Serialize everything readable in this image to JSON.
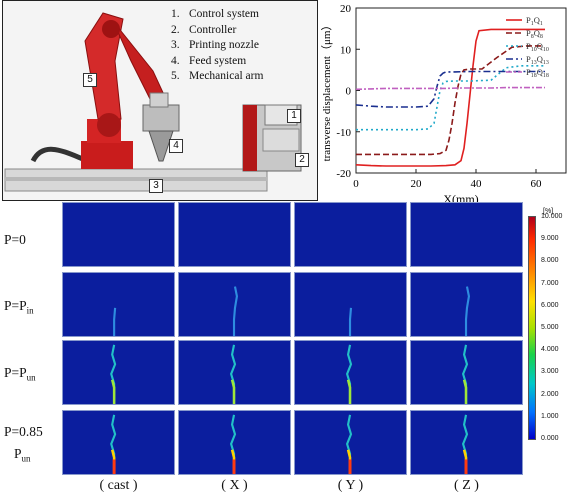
{
  "photo_panel": {
    "legend": [
      {
        "num": "1.",
        "label": "Control system"
      },
      {
        "num": "2.",
        "label": "Controller"
      },
      {
        "num": "3.",
        "label": "Printing nozzle"
      },
      {
        "num": "4.",
        "label": "Feed system"
      },
      {
        "num": "5.",
        "label": "Mechanical arm"
      }
    ],
    "callouts": [
      "1",
      "2",
      "3",
      "4",
      "5"
    ]
  },
  "chart_data": {
    "type": "line",
    "xlabel": "X(mm)",
    "ylabel": "transverse displacement（μm）",
    "xlim": [
      0,
      70
    ],
    "ylim": [
      -20,
      20
    ],
    "xticks": [
      "0",
      "20",
      "40",
      "60"
    ],
    "yticks": [
      "20",
      "10",
      "0",
      "-10",
      "-20"
    ],
    "legend_position": "top-right",
    "series": [
      {
        "name": "P1Q1",
        "label_main": "P",
        "sub1": "1",
        "label_mid": "Q",
        "sub2": "1",
        "color": "#e02020",
        "dash": "",
        "x": [
          0,
          5,
          10,
          15,
          20,
          25,
          30,
          33,
          35,
          36,
          37,
          38,
          39,
          40,
          41,
          45,
          50,
          55,
          60,
          63
        ],
        "y": [
          -18,
          -18.2,
          -18.3,
          -18.3,
          -18.3,
          -18.3,
          -18.2,
          -18,
          -17,
          -14,
          -8,
          -1,
          6,
          12,
          14.5,
          14.8,
          14.8,
          14.8,
          14.8,
          14.8
        ]
      },
      {
        "name": "P8Q8",
        "label_main": "P",
        "sub1": "8",
        "label_mid": "Q",
        "sub2": "8",
        "color": "#8b1a1a",
        "dash": "6,3",
        "x": [
          0,
          5,
          10,
          15,
          20,
          25,
          28,
          30,
          31,
          32,
          33,
          34,
          35,
          36,
          38,
          42,
          47,
          52,
          57,
          62
        ],
        "y": [
          -15.5,
          -15.5,
          -15.5,
          -15.5,
          -15.5,
          -15.5,
          -15.3,
          -14.5,
          -12,
          -8,
          -3,
          1,
          4,
          5,
          5.2,
          5.2,
          8,
          10.5,
          10.8,
          10.8
        ]
      },
      {
        "name": "P10Q10",
        "label_main": "P",
        "sub1": "10",
        "label_mid": "Q",
        "sub2": "10",
        "color": "#1fa9c9",
        "dash": "2,3",
        "x": [
          0,
          5,
          10,
          15,
          20,
          24,
          26,
          27,
          28,
          29,
          30,
          33,
          38,
          45,
          50,
          55,
          60,
          63
        ],
        "y": [
          -9.5,
          -9.5,
          -9.5,
          -9.5,
          -9.5,
          -9.3,
          -8,
          -4,
          0,
          1.8,
          2.2,
          2.3,
          2.3,
          2.5,
          5.5,
          6,
          6,
          6
        ]
      },
      {
        "name": "P13Q13",
        "label_main": "P",
        "sub1": "13",
        "label_mid": "Q",
        "sub2": "13",
        "color": "#1a2f8f",
        "dash": "7,3,2,3",
        "x": [
          0,
          5,
          10,
          15,
          20,
          24,
          26,
          27,
          28,
          29,
          30,
          33,
          38,
          45,
          50,
          55,
          60,
          63
        ],
        "y": [
          -3.5,
          -3.8,
          -4,
          -4,
          -4,
          -3.8,
          -2,
          1,
          3.5,
          4.2,
          4.5,
          4.5,
          4.6,
          4.6,
          4.6,
          4.6,
          4.6,
          4.6
        ]
      },
      {
        "name": "P18Q18",
        "label_main": "P",
        "sub1": "18",
        "label_mid": "Q",
        "sub2": "18",
        "color": "#c060c0",
        "dash": "6,2,2,2",
        "x": [
          0,
          5,
          10,
          15,
          20,
          25,
          30,
          35,
          40,
          45,
          50,
          55,
          60,
          63
        ],
        "y": [
          0.3,
          0.4,
          0.5,
          0.5,
          0.5,
          0.5,
          0.5,
          0.6,
          0.6,
          0.6,
          0.7,
          0.7,
          0.7,
          0.7
        ]
      }
    ]
  },
  "grid": {
    "rows": [
      {
        "main": "P=0",
        "sub": "",
        "second_line": "",
        "intensity": 0
      },
      {
        "main": "P=P",
        "sub": "in",
        "second_line": "",
        "intensity": 1
      },
      {
        "main": "P=P",
        "sub": "un",
        "second_line": "",
        "intensity": 2
      },
      {
        "main": "P=0.85",
        "sub": "",
        "second_line_main": "P",
        "second_line_sub": "un",
        "intensity": 3
      }
    ],
    "columns": [
      "( cast )",
      "( X )",
      "( Y )",
      "( Z )"
    ]
  },
  "colorbar": {
    "title": "[%]",
    "ticks": [
      "10.000",
      "9.000",
      "8.000",
      "7.000",
      "6.000",
      "5.000",
      "4.000",
      "3.000",
      "2.000",
      "1.000",
      "0.000"
    ]
  }
}
